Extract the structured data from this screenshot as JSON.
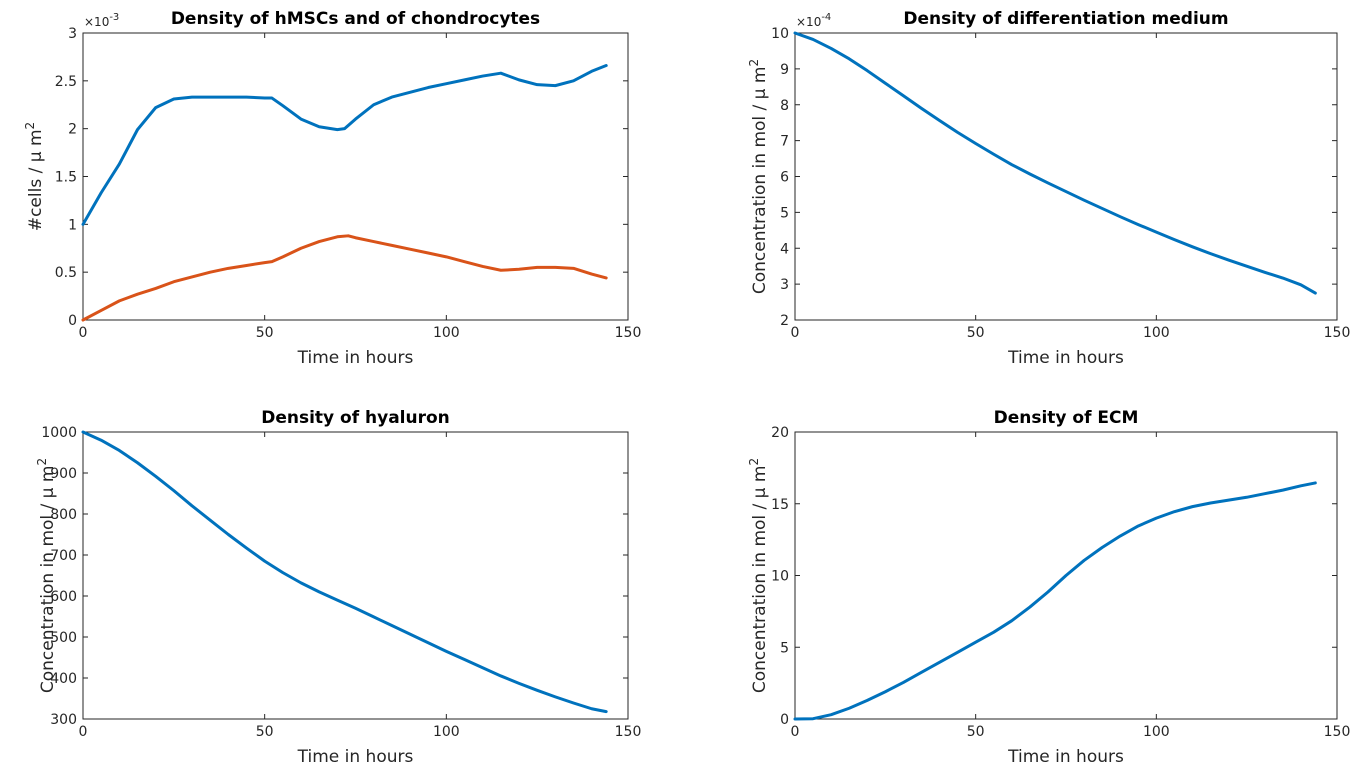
{
  "figure": {
    "background": "#ffffff"
  },
  "chart_data": [
    {
      "type": "line",
      "title": "Density of hMSCs and of chondrocytes",
      "xlabel": "Time in hours",
      "ylabel_main": "#cells / μ m",
      "ylabel_sup": "2",
      "exponent_label": "×10",
      "exponent_power": "-3",
      "xlim": [
        0,
        150
      ],
      "ylim": [
        0,
        3
      ],
      "xticks": [
        0,
        50,
        100,
        150
      ],
      "xtick_labels": [
        "0",
        "50",
        "100",
        "150"
      ],
      "yticks": [
        0,
        0.5,
        1,
        1.5,
        2,
        2.5,
        3
      ],
      "ytick_labels": [
        "0",
        "0.5",
        "1",
        "1.5",
        "2",
        "2.5",
        "3"
      ],
      "series": [
        {
          "color": "#0072BD",
          "x": [
            0,
            5,
            10,
            15,
            20,
            25,
            30,
            35,
            40,
            45,
            50,
            52,
            55,
            60,
            65,
            70,
            72,
            75,
            80,
            85,
            90,
            95,
            100,
            105,
            110,
            115,
            120,
            125,
            130,
            135,
            140,
            144
          ],
          "y": [
            1.0,
            1.33,
            1.63,
            1.99,
            2.22,
            2.31,
            2.33,
            2.33,
            2.33,
            2.33,
            2.32,
            2.32,
            2.24,
            2.1,
            2.02,
            1.99,
            2.0,
            2.1,
            2.25,
            2.33,
            2.38,
            2.43,
            2.47,
            2.51,
            2.55,
            2.58,
            2.51,
            2.46,
            2.45,
            2.5,
            2.6,
            2.66
          ]
        },
        {
          "color": "#D95319",
          "x": [
            0,
            5,
            10,
            15,
            20,
            25,
            30,
            35,
            40,
            45,
            50,
            52,
            55,
            60,
            65,
            70,
            73,
            75,
            80,
            85,
            90,
            95,
            100,
            105,
            110,
            115,
            120,
            125,
            130,
            135,
            140,
            144
          ],
          "y": [
            0.0,
            0.1,
            0.2,
            0.27,
            0.33,
            0.4,
            0.45,
            0.5,
            0.54,
            0.57,
            0.6,
            0.61,
            0.66,
            0.75,
            0.82,
            0.87,
            0.88,
            0.86,
            0.82,
            0.78,
            0.74,
            0.7,
            0.66,
            0.61,
            0.56,
            0.52,
            0.53,
            0.55,
            0.55,
            0.54,
            0.48,
            0.44
          ]
        }
      ]
    },
    {
      "type": "line",
      "title": "Density of differentiation medium",
      "xlabel": "Time in hours",
      "ylabel_main": "Concentration in mol / μ m",
      "ylabel_sup": "2",
      "exponent_label": "×10",
      "exponent_power": "-4",
      "xlim": [
        0,
        150
      ],
      "ylim": [
        2,
        10
      ],
      "xticks": [
        0,
        50,
        100,
        150
      ],
      "xtick_labels": [
        "0",
        "50",
        "100",
        "150"
      ],
      "yticks": [
        2,
        3,
        4,
        5,
        6,
        7,
        8,
        9,
        10
      ],
      "ytick_labels": [
        "2",
        "3",
        "4",
        "5",
        "6",
        "7",
        "8",
        "9",
        "10"
      ],
      "series": [
        {
          "color": "#0072BD",
          "x": [
            0,
            5,
            10,
            15,
            20,
            25,
            30,
            35,
            40,
            45,
            50,
            55,
            60,
            65,
            70,
            75,
            80,
            85,
            90,
            95,
            100,
            105,
            110,
            115,
            120,
            125,
            130,
            135,
            140,
            144
          ],
          "y": [
            10.0,
            9.82,
            9.57,
            9.28,
            8.95,
            8.6,
            8.25,
            7.9,
            7.56,
            7.23,
            6.92,
            6.62,
            6.33,
            6.07,
            5.82,
            5.58,
            5.34,
            5.11,
            4.88,
            4.66,
            4.45,
            4.24,
            4.04,
            3.85,
            3.67,
            3.5,
            3.33,
            3.17,
            2.98,
            2.75
          ]
        }
      ]
    },
    {
      "type": "line",
      "title": "Density of hyaluron",
      "xlabel": "Time in hours",
      "ylabel_main": "Concentration in mol / μ m",
      "ylabel_sup": "2",
      "exponent_label": "",
      "exponent_power": "",
      "xlim": [
        0,
        150
      ],
      "ylim": [
        300,
        1000
      ],
      "xticks": [
        0,
        50,
        100,
        150
      ],
      "xtick_labels": [
        "0",
        "50",
        "100",
        "150"
      ],
      "yticks": [
        300,
        400,
        500,
        600,
        700,
        800,
        900,
        1000
      ],
      "ytick_labels": [
        "300",
        "400",
        "500",
        "600",
        "700",
        "800",
        "900",
        "1000"
      ],
      "series": [
        {
          "color": "#0072BD",
          "x": [
            0,
            5,
            10,
            15,
            20,
            25,
            30,
            35,
            40,
            45,
            50,
            55,
            60,
            65,
            70,
            75,
            80,
            85,
            90,
            95,
            100,
            105,
            110,
            115,
            120,
            125,
            130,
            135,
            140,
            144
          ],
          "y": [
            1000,
            980,
            955,
            925,
            892,
            857,
            820,
            785,
            750,
            717,
            685,
            657,
            632,
            610,
            590,
            570,
            549,
            528,
            507,
            486,
            465,
            445,
            425,
            405,
            387,
            370,
            354,
            339,
            325,
            318
          ]
        }
      ]
    },
    {
      "type": "line",
      "title": "Density of ECM",
      "xlabel": "Time in hours",
      "ylabel_main": "Concentration in mol / μ m",
      "ylabel_sup": "2",
      "exponent_label": "",
      "exponent_power": "",
      "xlim": [
        0,
        150
      ],
      "ylim": [
        0,
        20
      ],
      "xticks": [
        0,
        50,
        100,
        150
      ],
      "xtick_labels": [
        "0",
        "50",
        "100",
        "150"
      ],
      "yticks": [
        0,
        5,
        10,
        15,
        20
      ],
      "ytick_labels": [
        "0",
        "5",
        "10",
        "15",
        "20"
      ],
      "series": [
        {
          "color": "#0072BD",
          "x": [
            0,
            5,
            10,
            15,
            20,
            25,
            30,
            35,
            40,
            45,
            50,
            55,
            60,
            65,
            70,
            75,
            80,
            85,
            90,
            95,
            100,
            105,
            110,
            115,
            120,
            125,
            130,
            135,
            140,
            144
          ],
          "y": [
            0,
            0.02,
            0.3,
            0.75,
            1.3,
            1.9,
            2.55,
            3.25,
            3.95,
            4.65,
            5.35,
            6.05,
            6.85,
            7.8,
            8.85,
            10.0,
            11.05,
            11.95,
            12.75,
            13.45,
            14.0,
            14.45,
            14.8,
            15.05,
            15.25,
            15.45,
            15.7,
            15.95,
            16.25,
            16.45
          ]
        }
      ]
    }
  ]
}
